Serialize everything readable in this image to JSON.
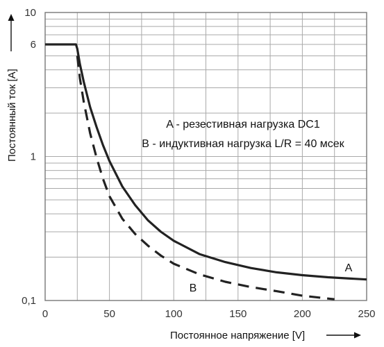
{
  "chart_data": {
    "type": "line",
    "xlabel": "Постоянное напряжение [V]",
    "ylabel": "Постоянный ток [A]",
    "xlim": [
      0,
      250
    ],
    "ylim": [
      0.1,
      10
    ],
    "y_scale": "log",
    "grid": true,
    "x_ticks": [
      {
        "value": 0,
        "label": "0"
      },
      {
        "value": 50,
        "label": "50"
      },
      {
        "value": 100,
        "label": "100"
      },
      {
        "value": 150,
        "label": "150"
      },
      {
        "value": 200,
        "label": "200"
      },
      {
        "value": 250,
        "label": "250"
      }
    ],
    "y_ticks": [
      {
        "value": 10,
        "label": "10"
      },
      {
        "value": 6,
        "label": "6"
      },
      {
        "value": 1,
        "label": "1"
      },
      {
        "value": 0.1,
        "label": "0,1"
      }
    ],
    "annotations": [
      "A - резестивная нагрузка DC1",
      "B - индуктивная нагрузка L/R = 40 мсек"
    ],
    "series": [
      {
        "name": "A",
        "style": "solid",
        "color": "#222222",
        "x": [
          0,
          24,
          25,
          27,
          30,
          35,
          40,
          45,
          50,
          60,
          70,
          80,
          90,
          100,
          120,
          140,
          160,
          180,
          200,
          220,
          250
        ],
        "y": [
          6,
          6,
          5.6,
          4.4,
          3.3,
          2.2,
          1.6,
          1.2,
          0.93,
          0.62,
          0.46,
          0.36,
          0.3,
          0.26,
          0.21,
          0.185,
          0.168,
          0.157,
          0.15,
          0.145,
          0.14
        ]
      },
      {
        "name": "B",
        "style": "dashed",
        "color": "#222222",
        "x": [
          25,
          27,
          30,
          35,
          40,
          45,
          50,
          60,
          70,
          80,
          90,
          100,
          120,
          140,
          160,
          180,
          200,
          225
        ],
        "y": [
          5.0,
          3.5,
          2.4,
          1.45,
          0.98,
          0.7,
          0.53,
          0.37,
          0.29,
          0.24,
          0.205,
          0.18,
          0.152,
          0.135,
          0.124,
          0.116,
          0.108,
          0.102
        ]
      }
    ]
  }
}
